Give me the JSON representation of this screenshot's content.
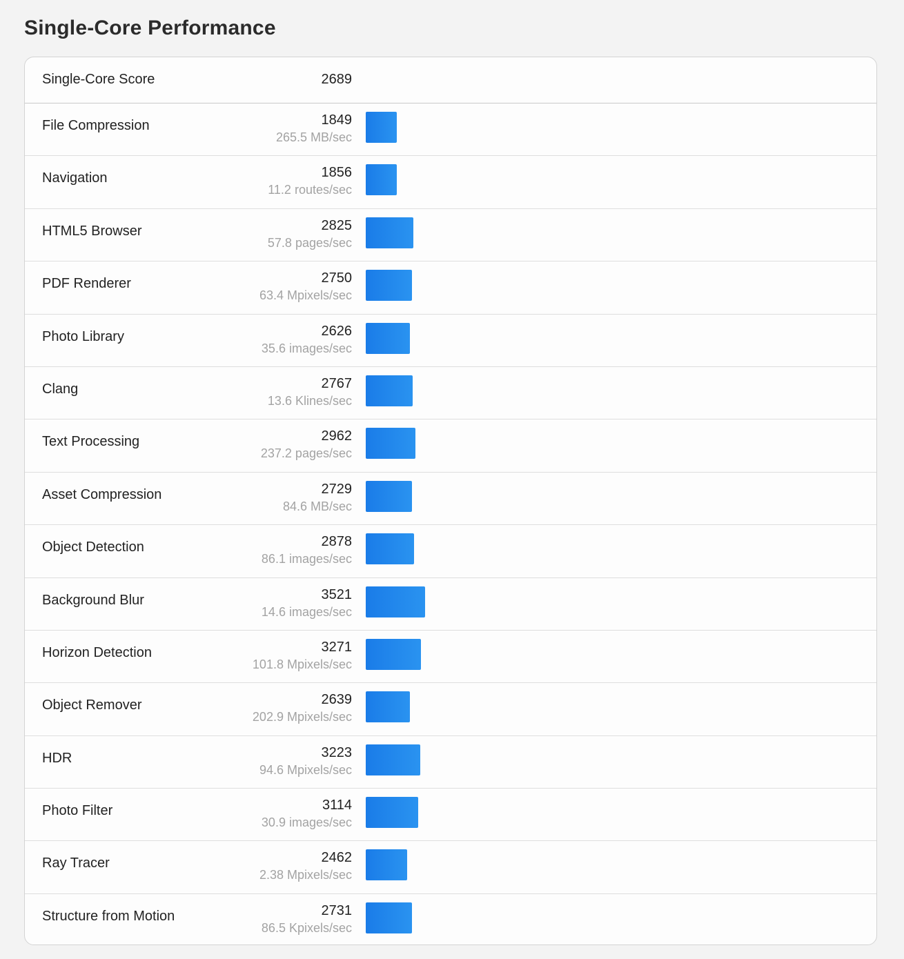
{
  "page": {
    "title": "Single-Core Performance"
  },
  "summary": {
    "label": "Single-Core Score",
    "score": "2689"
  },
  "bar_color": "#1a7ce8",
  "bar_scale_max_score": 3521,
  "tests": [
    {
      "name": "File Compression",
      "score": "1849",
      "value": 1849,
      "rate": "265.5 MB/sec"
    },
    {
      "name": "Navigation",
      "score": "1856",
      "value": 1856,
      "rate": "11.2 routes/sec"
    },
    {
      "name": "HTML5 Browser",
      "score": "2825",
      "value": 2825,
      "rate": "57.8 pages/sec"
    },
    {
      "name": "PDF Renderer",
      "score": "2750",
      "value": 2750,
      "rate": "63.4 Mpixels/sec"
    },
    {
      "name": "Photo Library",
      "score": "2626",
      "value": 2626,
      "rate": "35.6 images/sec"
    },
    {
      "name": "Clang",
      "score": "2767",
      "value": 2767,
      "rate": "13.6 Klines/sec"
    },
    {
      "name": "Text Processing",
      "score": "2962",
      "value": 2962,
      "rate": "237.2 pages/sec"
    },
    {
      "name": "Asset Compression",
      "score": "2729",
      "value": 2729,
      "rate": "84.6 MB/sec"
    },
    {
      "name": "Object Detection",
      "score": "2878",
      "value": 2878,
      "rate": "86.1 images/sec"
    },
    {
      "name": "Background Blur",
      "score": "3521",
      "value": 3521,
      "rate": "14.6 images/sec"
    },
    {
      "name": "Horizon Detection",
      "score": "3271",
      "value": 3271,
      "rate": "101.8 Mpixels/sec"
    },
    {
      "name": "Object Remover",
      "score": "2639",
      "value": 2639,
      "rate": "202.9 Mpixels/sec"
    },
    {
      "name": "HDR",
      "score": "3223",
      "value": 3223,
      "rate": "94.6 Mpixels/sec"
    },
    {
      "name": "Photo Filter",
      "score": "3114",
      "value": 3114,
      "rate": "30.9 images/sec"
    },
    {
      "name": "Ray Tracer",
      "score": "2462",
      "value": 2462,
      "rate": "2.38 Mpixels/sec"
    },
    {
      "name": "Structure from Motion",
      "score": "2731",
      "value": 2731,
      "rate": "86.5 Kpixels/sec"
    }
  ]
}
